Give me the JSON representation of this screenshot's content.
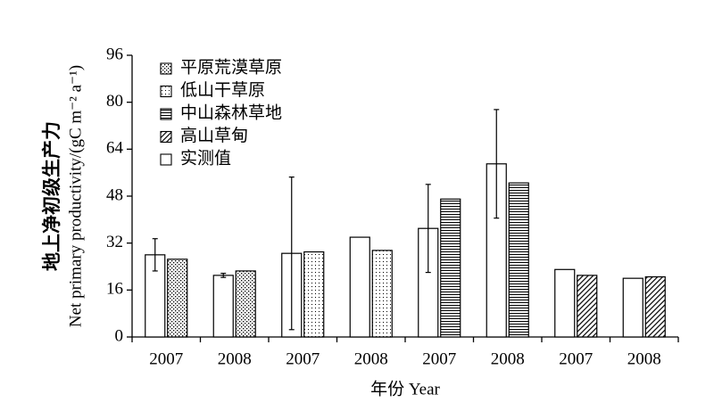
{
  "chart_data": {
    "type": "bar",
    "categories": [
      "2007",
      "2008",
      "2007",
      "2008",
      "2007",
      "2008",
      "2007",
      "2008"
    ],
    "series": [
      {
        "name": "平原荒漠草原",
        "color": "#000000",
        "pattern": "crosshatch",
        "values": [
          26.5,
          22.5,
          null,
          null,
          null,
          null,
          null,
          null
        ]
      },
      {
        "name": "低山干草原",
        "color": "#000000",
        "pattern": "dots",
        "values": [
          null,
          null,
          29,
          29.5,
          null,
          null,
          null,
          null
        ]
      },
      {
        "name": "中山森林草地",
        "color": "#000000",
        "pattern": "hlines",
        "values": [
          null,
          null,
          null,
          null,
          47,
          52.5,
          null,
          null
        ]
      },
      {
        "name": "高山草甸",
        "color": "#000000",
        "pattern": "diagonal",
        "values": [
          null,
          null,
          null,
          null,
          null,
          null,
          21,
          20.5
        ]
      },
      {
        "name": "实测值",
        "color": "#000000",
        "pattern": "none",
        "values": [
          28,
          21,
          28.5,
          34,
          37,
          59,
          23,
          20
        ],
        "errors": [
          5.5,
          0.7,
          26,
          null,
          15,
          18.5,
          null,
          null
        ]
      }
    ],
    "ylabel": [
      "地上净初级生产力",
      "Net primary productivity/(gC m⁻² a⁻¹)"
    ],
    "xlabel": "年份 Year",
    "ylim": [
      0,
      96
    ],
    "yticks": [
      0,
      16,
      32,
      48,
      64,
      80,
      96
    ],
    "legend": "upper left",
    "grid": false
  }
}
